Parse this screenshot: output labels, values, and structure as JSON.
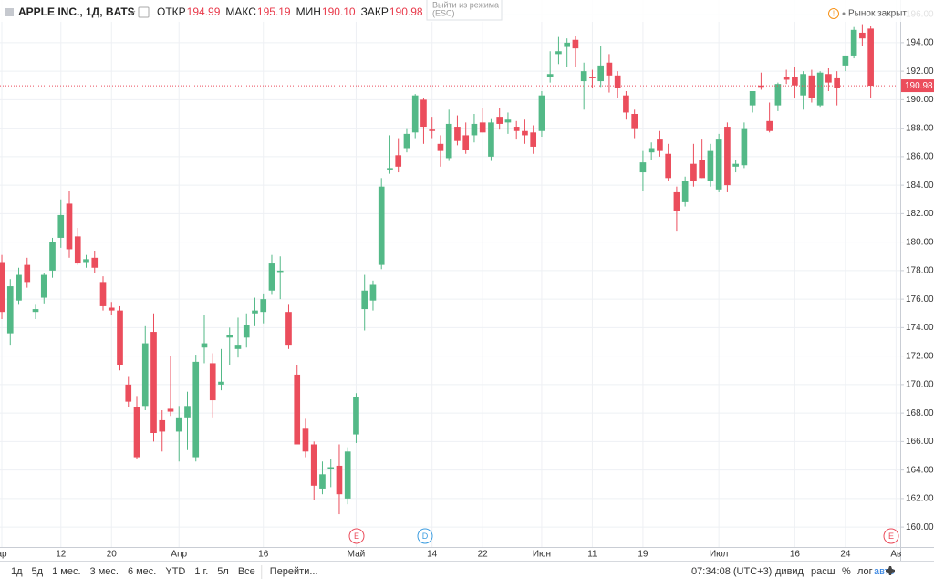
{
  "header": {
    "symbol": "APPLE INC., 1Д, BATS",
    "fields": [
      {
        "label": "ОТКР",
        "value": "194.99"
      },
      {
        "label": "МАКС",
        "value": "195.19"
      },
      {
        "label": "МИН",
        "value": "190.10"
      },
      {
        "label": "ЗАКР",
        "value": "190.98"
      }
    ],
    "exit_mode": [
      "Выйти из режима",
      "(ESC)"
    ],
    "market_status": "Рынок закрыт"
  },
  "events": [
    "E",
    "D",
    "E"
  ],
  "toolbar": {
    "ranges": [
      "1д",
      "5д",
      "1 мес.",
      "3 мес.",
      "6 мес.",
      "YTD",
      "1 г.",
      "5л",
      "Все"
    ],
    "goto": "Перейти...",
    "clock": "07:34:08 (UTC+3)",
    "options": [
      "дивид",
      "расш",
      "%",
      "лог",
      "авто"
    ]
  },
  "chart_data": {
    "type": "candlestick",
    "up_color": "#53b987",
    "down_color": "#eb4d5c",
    "grid": true,
    "categories": [
      "ар",
      null,
      null,
      null,
      null,
      null,
      null,
      "12",
      null,
      null,
      null,
      null,
      null,
      "20",
      null,
      null,
      null,
      null,
      null,
      null,
      null,
      "Апр",
      null,
      null,
      null,
      null,
      null,
      null,
      null,
      null,
      null,
      "16",
      null,
      null,
      null,
      null,
      null,
      null,
      null,
      null,
      null,
      null,
      "Май",
      null,
      null,
      null,
      null,
      null,
      null,
      null,
      null,
      "14",
      null,
      null,
      null,
      null,
      null,
      "22",
      null,
      null,
      null,
      null,
      null,
      null,
      "Июн",
      null,
      null,
      null,
      null,
      null,
      "11",
      null,
      null,
      null,
      null,
      null,
      "19",
      null,
      null,
      null,
      null,
      null,
      null,
      null,
      null,
      "Июл",
      null,
      null,
      null,
      null,
      null,
      null,
      null,
      null,
      "16",
      null,
      null,
      null,
      null,
      null,
      "24",
      null,
      null,
      null,
      null,
      null,
      "Ав"
    ],
    "open": [
      178.6,
      173.6,
      175.9,
      178.4,
      175.1,
      176.1,
      178.0,
      180.3,
      182.7,
      180.4,
      178.6,
      178.9,
      177.2,
      175.4,
      175.2,
      170.0,
      168.4,
      168.5,
      173.7,
      167.5,
      168.3,
      166.7,
      167.7,
      164.9,
      172.6,
      171.5,
      170.0,
      173.3,
      172.5,
      173.3,
      175.0,
      175.1,
      176.6,
      177.9,
      175.1,
      170.7,
      166.9,
      165.8,
      162.7,
      164.1,
      164.3,
      162.0,
      166.5,
      175.3,
      175.9,
      178.4,
      185.1,
      186.1,
      186.6,
      187.7,
      190.0,
      187.9,
      186.9,
      185.9,
      188.1,
      187.5,
      187.5,
      188.4,
      186.0,
      188.8,
      188.4,
      188.1,
      187.8,
      187.7,
      187.8,
      191.6,
      193.2,
      193.7,
      194.2,
      191.3,
      191.6,
      191.3,
      192.6,
      191.7,
      190.3,
      189.0,
      184.9,
      186.3,
      187.2,
      186.2,
      183.5,
      182.8,
      185.5,
      185.8,
      184.3,
      183.7,
      188.1,
      185.3,
      185.4,
      189.6,
      191.0,
      188.5,
      189.6,
      191.6,
      191.6,
      190.3,
      191.7,
      189.6,
      191.8,
      191.5,
      192.4,
      193.1,
      194.7,
      194.99,
      null,
      null,
      null
    ],
    "high": [
      179.1,
      177.4,
      178.2,
      178.9,
      175.6,
      177.8,
      180.3,
      183.0,
      183.6,
      181.0,
      179.1,
      179.4,
      177.6,
      175.8,
      175.5,
      170.6,
      169.2,
      174.1,
      175.0,
      168.2,
      172.0,
      168.5,
      169.5,
      172.1,
      174.9,
      172.2,
      172.5,
      174.0,
      174.7,
      175.0,
      176.1,
      176.4,
      179.1,
      179.0,
      175.6,
      171.4,
      167.6,
      166.0,
      164.6,
      164.8,
      165.8,
      165.6,
      169.4,
      177.7,
      177.3,
      184.5,
      187.5,
      187.3,
      188.0,
      190.4,
      190.1,
      188.8,
      187.5,
      189.3,
      188.9,
      188.4,
      189.0,
      189.4,
      188.7,
      189.4,
      189.1,
      188.5,
      188.6,
      188.2,
      190.6,
      193.4,
      194.4,
      194.3,
      194.5,
      192.6,
      192.1,
      193.8,
      193.2,
      192.0,
      190.6,
      189.3,
      186.4,
      187.0,
      187.8,
      186.9,
      183.9,
      184.6,
      186.9,
      187.2,
      186.9,
      187.6,
      188.4,
      185.8,
      188.4,
      190.6,
      191.9,
      189.8,
      191.2,
      192.1,
      192.3,
      192.0,
      192.1,
      192.0,
      192.2,
      192.0,
      193.1,
      195.1,
      195.3,
      195.19,
      null,
      null,
      null
    ],
    "low": [
      174.6,
      172.8,
      175.6,
      176.8,
      174.6,
      175.7,
      177.5,
      179.6,
      178.9,
      178.4,
      178.2,
      177.8,
      175.2,
      174.9,
      171.0,
      168.4,
      164.8,
      168.2,
      166.0,
      165.3,
      167.8,
      164.6,
      165.4,
      164.6,
      171.5,
      167.7,
      169.6,
      171.4,
      171.9,
      172.6,
      174.1,
      174.3,
      176.3,
      176.0,
      172.5,
      165.8,
      164.9,
      161.9,
      162.3,
      162.8,
      160.9,
      161.6,
      165.9,
      173.8,
      175.2,
      178.1,
      184.8,
      184.9,
      186.3,
      187.3,
      186.9,
      187.3,
      185.3,
      185.7,
      186.8,
      186.2,
      187.0,
      187.7,
      185.7,
      187.9,
      187.6,
      187.2,
      186.9,
      186.2,
      187.4,
      191.2,
      192.5,
      192.3,
      192.3,
      189.3,
      190.8,
      190.9,
      190.5,
      190.1,
      188.6,
      187.3,
      183.6,
      185.8,
      186.0,
      184.3,
      180.8,
      182.5,
      183.9,
      184.5,
      183.9,
      183.5,
      183.5,
      184.9,
      185.2,
      189.1,
      190.7,
      187.7,
      189.2,
      191.1,
      190.1,
      189.3,
      189.8,
      189.5,
      190.6,
      189.6,
      192.0,
      192.9,
      193.8,
      190.1,
      null,
      null,
      null
    ],
    "close": [
      175.1,
      176.9,
      177.7,
      177.2,
      175.3,
      177.7,
      180.0,
      181.9,
      179.5,
      178.5,
      178.8,
      178.2,
      175.5,
      175.2,
      171.4,
      168.8,
      164.9,
      172.9,
      166.6,
      166.7,
      168.1,
      167.7,
      168.5,
      171.6,
      172.9,
      168.9,
      170.2,
      173.5,
      172.8,
      174.2,
      175.2,
      176.0,
      178.5,
      178.0,
      172.8,
      165.8,
      165.3,
      162.9,
      163.7,
      164.2,
      162.3,
      165.3,
      169.1,
      176.6,
      177.0,
      183.9,
      185.2,
      185.3,
      187.6,
      190.3,
      188.1,
      187.8,
      186.4,
      188.3,
      187.1,
      186.5,
      188.3,
      187.7,
      188.4,
      188.3,
      188.6,
      187.8,
      187.5,
      186.7,
      190.3,
      191.8,
      193.4,
      194.0,
      193.6,
      192.0,
      191.5,
      192.4,
      191.7,
      190.8,
      189.1,
      188.0,
      185.6,
      186.6,
      186.4,
      184.5,
      182.2,
      184.3,
      184.3,
      184.5,
      186.4,
      187.2,
      184.0,
      185.5,
      188.0,
      190.6,
      190.9,
      187.8,
      191.1,
      191.4,
      191.0,
      191.8,
      190.1,
      191.9,
      191.2,
      190.8,
      193.1,
      194.9,
      194.3,
      190.98,
      null,
      null,
      null
    ],
    "ylim": [
      158.6,
      197
    ],
    "yticks": [
      {
        "value": 160,
        "label": "160.00"
      },
      {
        "value": 162,
        "label": "162.00"
      },
      {
        "value": 164,
        "label": "164.00"
      },
      {
        "value": 166,
        "label": "166.00"
      },
      {
        "value": 168,
        "label": "168.00"
      },
      {
        "value": 170,
        "label": "170.00"
      },
      {
        "value": 172,
        "label": "172.00"
      },
      {
        "value": 174,
        "label": "174.00"
      },
      {
        "value": 176,
        "label": "176.00"
      },
      {
        "value": 178,
        "label": "178.00"
      },
      {
        "value": 180,
        "label": "180.00"
      },
      {
        "value": 182,
        "label": "182.00"
      },
      {
        "value": 184,
        "label": "184.00"
      },
      {
        "value": 186,
        "label": "186.00"
      },
      {
        "value": 188,
        "label": "188.00"
      },
      {
        "value": 190,
        "label": "190.00"
      },
      {
        "value": 192,
        "label": "192.00"
      },
      {
        "value": 194,
        "label": "194.00"
      },
      {
        "value": 196,
        "label": "196.00"
      }
    ]
  }
}
